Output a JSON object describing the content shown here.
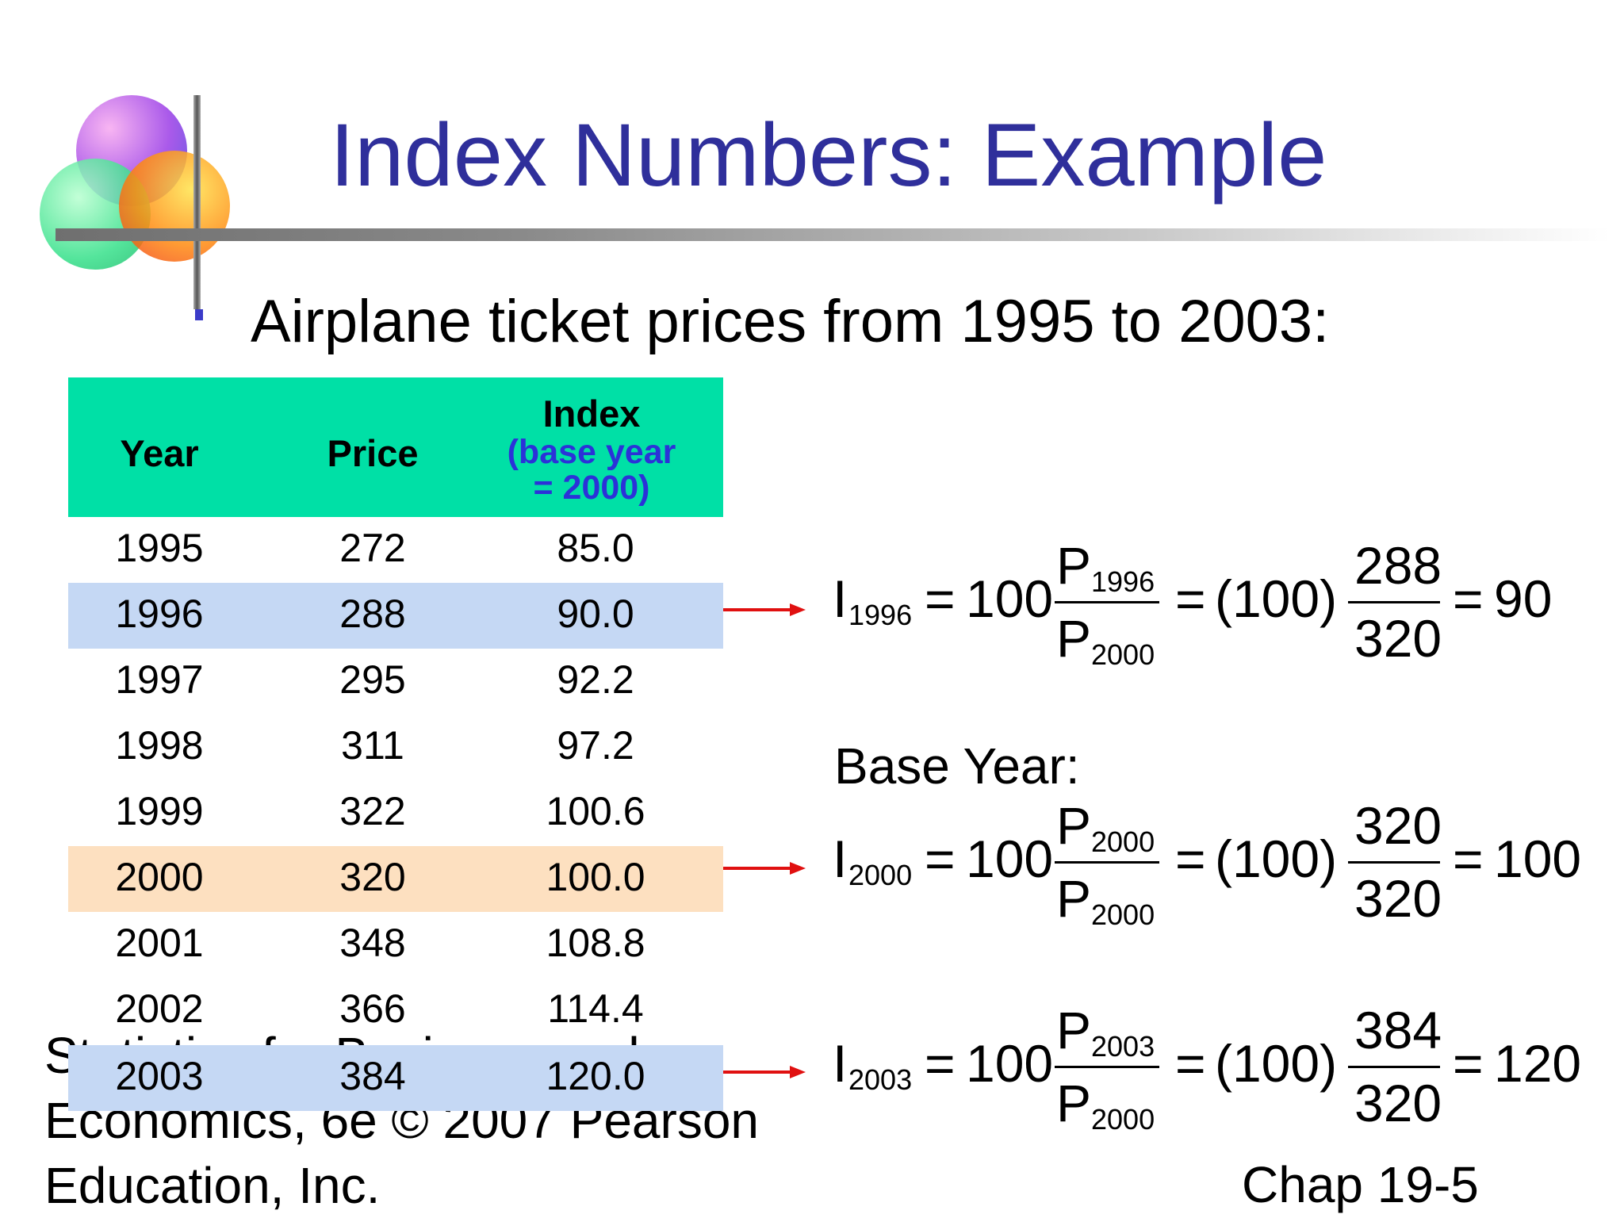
{
  "slide": {
    "title": "Index Numbers: Example",
    "subtitle": "Airplane ticket prices from 1995 to 2003:"
  },
  "table": {
    "headers": {
      "year": "Year",
      "price": "Price",
      "index_line1": "Index",
      "index_line2": "(base year",
      "index_line3": "= 2000)"
    },
    "rows": [
      {
        "year": "1995",
        "price": "272",
        "index": "85.0"
      },
      {
        "year": "1996",
        "price": "288",
        "index": "90.0"
      },
      {
        "year": "1997",
        "price": "295",
        "index": "92.2"
      },
      {
        "year": "1998",
        "price": "311",
        "index": "97.2"
      },
      {
        "year": "1999",
        "price": "322",
        "index": "100.6"
      },
      {
        "year": "2000",
        "price": "320",
        "index": "100.0"
      },
      {
        "year": "2001",
        "price": "348",
        "index": "108.8"
      },
      {
        "year": "2002",
        "price": "366",
        "index": "114.4"
      },
      {
        "year": "2003",
        "price": "384",
        "index": "120.0"
      }
    ]
  },
  "base_year_label": "Base Year:",
  "formulas": [
    {
      "i": "I",
      "i_sub": "1996",
      "eq1": "=",
      "hundred": "100",
      "p_top": "P",
      "p_top_sub": "1996",
      "p_bot": "P",
      "p_bot_sub": "2000",
      "eq2": "=",
      "paren": "(100)",
      "num": "288",
      "den": "320",
      "eq3": "=",
      "result": "90"
    },
    {
      "i": "I",
      "i_sub": "2000",
      "eq1": "=",
      "hundred": "100",
      "p_top": "P",
      "p_top_sub": "2000",
      "p_bot": "P",
      "p_bot_sub": "2000",
      "eq2": "=",
      "paren": "(100)",
      "num": "320",
      "den": "320",
      "eq3": "=",
      "result": "100"
    },
    {
      "i": "I",
      "i_sub": "2003",
      "eq1": "=",
      "hundred": "100",
      "p_top": "P",
      "p_top_sub": "2003",
      "p_bot": "P",
      "p_bot_sub": "2000",
      "eq2": "=",
      "paren": "(100)",
      "num": "384",
      "den": "320",
      "eq3": "=",
      "result": "120"
    }
  ],
  "footer": {
    "line1": "Statistics for Business and",
    "line2": "Economics, 6e © 2007 Pearson",
    "line3": "Education, Inc.",
    "chapter": "Chap 19-5"
  },
  "colors": {
    "title": "#2f2f9b",
    "header_bg": "#00e0a6",
    "row_highlight_blue": "#c5d8f4",
    "row_highlight_base": "#fde0c0",
    "arrow": "#e01010"
  }
}
